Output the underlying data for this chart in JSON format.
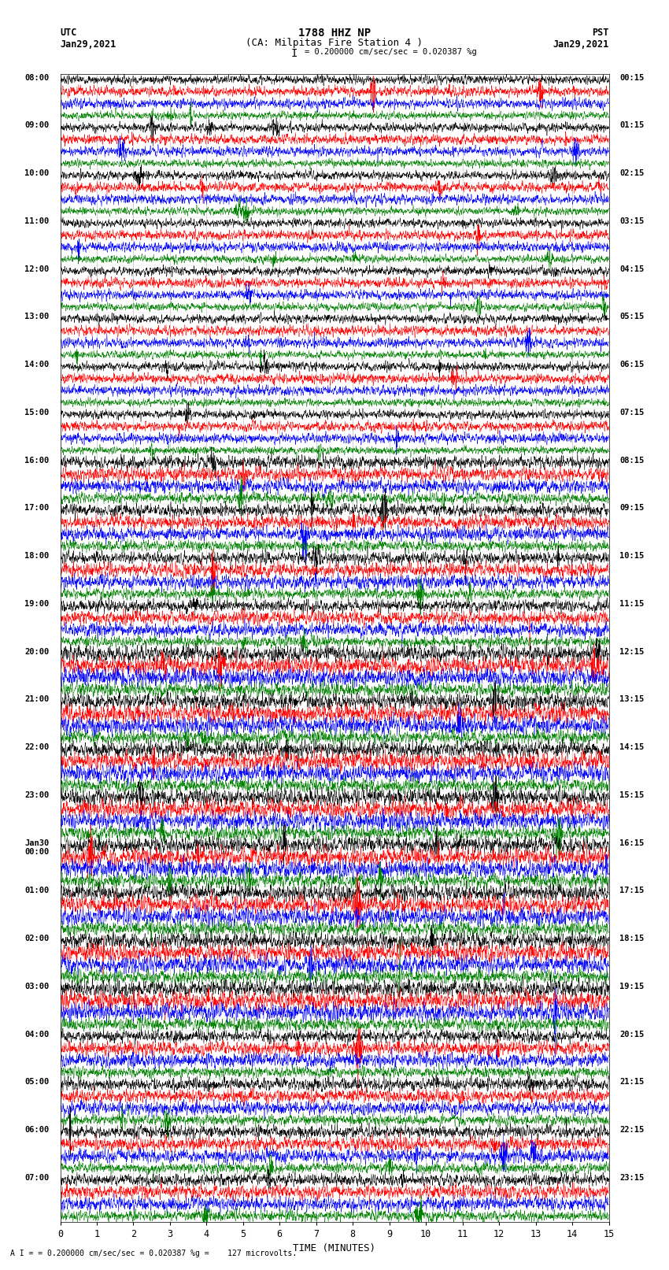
{
  "title_line1": "1788 HHZ NP",
  "title_line2": "(CA: Milpitas Fire Station 4 )",
  "scale_text": "= 0.200000 cm/sec/sec = 0.020387 %g",
  "bottom_text": "= 0.200000 cm/sec/sec = 0.020387 %g =    127 microvolts.",
  "left_header": "UTC",
  "left_date": "Jan29,2021",
  "right_header": "PST",
  "right_date": "Jan29,2021",
  "xlabel": "TIME (MINUTES)",
  "xlim": [
    0,
    15
  ],
  "xticks": [
    0,
    1,
    2,
    3,
    4,
    5,
    6,
    7,
    8,
    9,
    10,
    11,
    12,
    13,
    14,
    15
  ],
  "colors": [
    "black",
    "red",
    "blue",
    "green"
  ],
  "background_color": "white",
  "num_rows": 96,
  "figsize": [
    8.5,
    16.13
  ],
  "dpi": 100,
  "utc_labels": [
    "08:00",
    "09:00",
    "10:00",
    "11:00",
    "12:00",
    "13:00",
    "14:00",
    "15:00",
    "16:00",
    "17:00",
    "18:00",
    "19:00",
    "20:00",
    "21:00",
    "22:00",
    "23:00",
    "Jan30\n00:00",
    "01:00",
    "02:00",
    "03:00",
    "04:00",
    "05:00",
    "06:00",
    "07:00"
  ],
  "pst_labels": [
    "00:15",
    "01:15",
    "02:15",
    "03:15",
    "04:15",
    "05:15",
    "06:15",
    "07:15",
    "08:15",
    "09:15",
    "10:15",
    "11:15",
    "12:15",
    "13:15",
    "14:15",
    "15:15",
    "16:15",
    "17:15",
    "18:15",
    "19:15",
    "20:15",
    "21:15",
    "22:15",
    "23:15"
  ]
}
